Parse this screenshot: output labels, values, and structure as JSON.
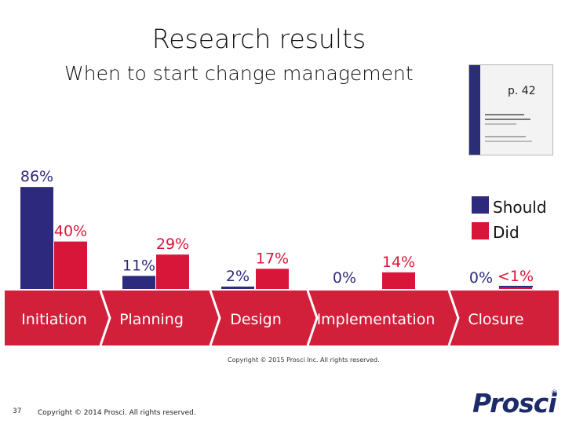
{
  "slide": {
    "title": "Research results",
    "subtitle": "When to start change management",
    "book_label": "p. 42",
    "image_copyright": "Copyright © 2015 Prosci Inc. All rights reserved.",
    "page_number": "37",
    "footer_copyright": "Copyright © 2014 Prosci. All rights reserved.",
    "logo": "Prosci",
    "logo_mark": "®"
  },
  "colors": {
    "should": "#2d2a7d",
    "did": "#d7163a",
    "band": "#d21f3a",
    "should_text": "#2d2a7d",
    "did_text": "#d7163a"
  },
  "chart_data": {
    "type": "bar",
    "categories": [
      "Initiation",
      "Planning",
      "Design",
      "Implementation",
      "Closure"
    ],
    "series": [
      {
        "name": "Should",
        "values": [
          86,
          11,
          2,
          0,
          0
        ],
        "labels": [
          "86%",
          "11%",
          "2%",
          "0%",
          "0%"
        ]
      },
      {
        "name": "Did",
        "values": [
          40,
          29,
          17,
          14,
          0.5
        ],
        "labels": [
          "40%",
          "29%",
          "17%",
          "14%",
          "<1%"
        ]
      }
    ],
    "legend_position": "right",
    "ylim": [
      0,
      100
    ]
  }
}
